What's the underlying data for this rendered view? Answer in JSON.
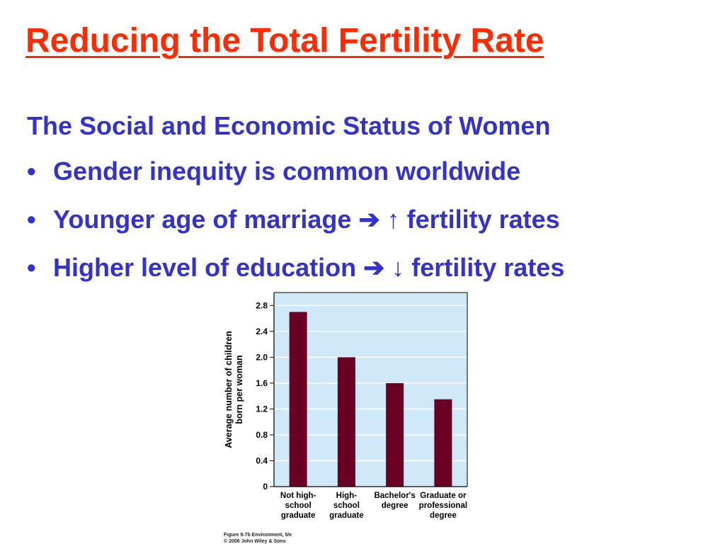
{
  "slide": {
    "title": "Reducing the Total Fertility Rate",
    "subheading": "The Social and Economic Status of Women",
    "bullet_char": "•",
    "bullets": [
      "Gender inequity is common worldwide",
      "Younger age of marriage ➔ ↑ fertility rates",
      "Higher level of education ➔ ↓ fertility rates"
    ],
    "colors": {
      "title": "#ff2a00",
      "body": "#3333cc"
    }
  },
  "figure": {
    "credit_line1": "Figure 9-7b  Environment, 5/e",
    "credit_line2": "© 2006 John Wiley & Sons"
  },
  "chart_data": {
    "type": "bar",
    "categories": [
      [
        "Not high-",
        "school",
        "graduate"
      ],
      [
        "High-",
        "school",
        "graduate"
      ],
      [
        "Bachelor's",
        "degree"
      ],
      [
        "Graduate or",
        "professional",
        "degree"
      ]
    ],
    "values": [
      2.7,
      2.0,
      1.6,
      1.35
    ],
    "ylabel": [
      "Average number of children",
      "born per woman"
    ],
    "yticks": [
      0,
      0.4,
      0.8,
      1.2,
      1.6,
      2.0,
      2.4,
      2.8
    ],
    "ytick_labels": [
      "0",
      "0.4",
      "0.8",
      "1.2",
      "1.6",
      "2.0",
      "2.4",
      "2.8"
    ],
    "ylim": [
      0,
      3.0
    ],
    "grid": true,
    "colors": {
      "bar": "#6b0025",
      "background": "#cfe9f9",
      "grid": "#ffffff"
    }
  }
}
